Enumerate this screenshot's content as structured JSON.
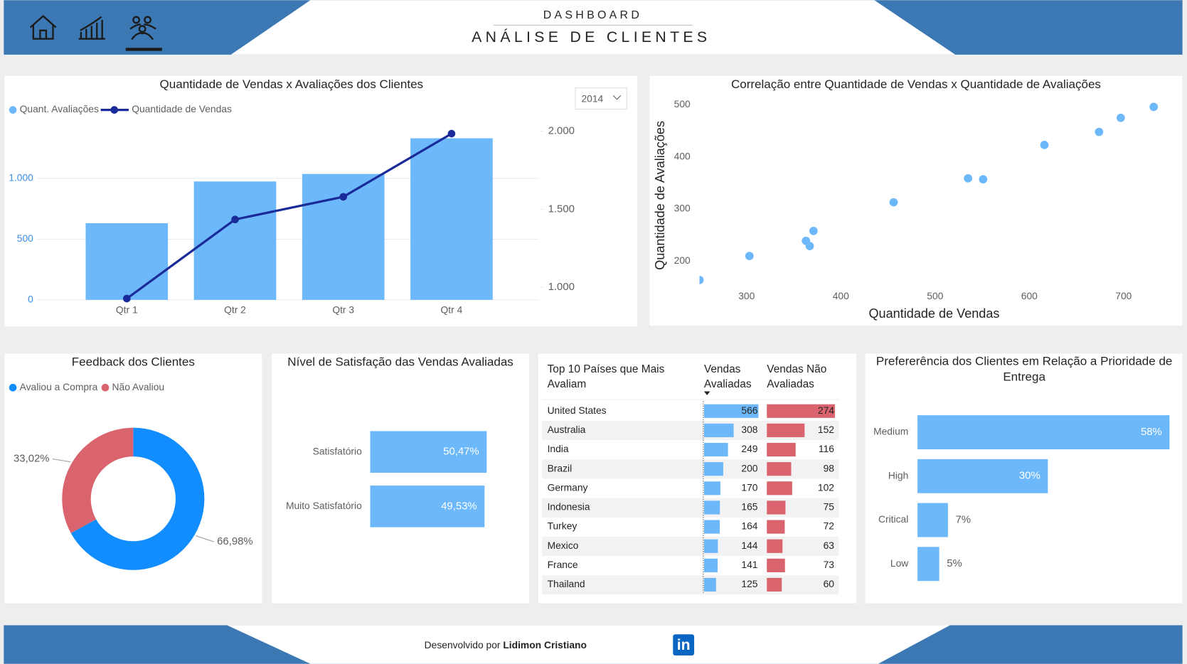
{
  "header": {
    "subtitle": "DASHBOARD",
    "title": "ANÁLISE DE CLIENTES"
  },
  "footer": {
    "prefix": "Desenvolvido por",
    "author": "Lidimon Cristiano",
    "badge": "in"
  },
  "chart_data": [
    {
      "type": "combo",
      "title": "Quantidade de Vendas x Avaliações dos Clientes",
      "filter": "2014",
      "categories": [
        "Qtr 1",
        "Qtr 2",
        "Qtr 3",
        "Qtr 4"
      ],
      "series": [
        {
          "name": "Quant. Avaliações",
          "type": "bar",
          "color": "#6cb8fb",
          "values": [
            631,
            975,
            1037,
            1331
          ]
        },
        {
          "name": "Quantidade de Vendas",
          "type": "line",
          "axis": "y2",
          "color": "#1a2a99",
          "values": [
            928,
            1435,
            1580,
            1985
          ]
        }
      ],
      "ylim": [
        0,
        1440
      ],
      "yticks": [
        0,
        500,
        {
          "value": 1000,
          "label": "1.000"
        }
      ],
      "y2lim": [
        920,
        2040
      ],
      "y2ticks": [
        {
          "value": 1000,
          "label": "1.000"
        },
        {
          "value": 1500,
          "label": "1.500"
        },
        {
          "value": 2000,
          "label": "2.000"
        }
      ],
      "grid": true,
      "legend": "top-left"
    },
    {
      "type": "scatter",
      "title": "Correlação entre Quantidade de Vendas x Quantidade de Avaliações",
      "x_label": "Quantidade de Vendas",
      "y_label": "Quantidade de Avaliações",
      "color": "#6cb8fb",
      "x": [
        250,
        303,
        363,
        367,
        371,
        456,
        535,
        551,
        616,
        674,
        697,
        732
      ],
      "values": [
        164,
        210,
        239,
        229,
        258,
        313,
        359,
        357,
        423,
        448,
        475,
        496
      ],
      "xlim": [
        250,
        740
      ],
      "ylim": [
        152,
        512
      ],
      "xticks": [
        300,
        400,
        500,
        600,
        700
      ],
      "yticks": [
        200,
        300,
        400,
        500
      ]
    },
    {
      "type": "donut",
      "title": "Feedback dos Clientes",
      "categories": [
        "Avaliou a Compra",
        "Não Avaliou"
      ],
      "values": [
        66.98,
        33.02
      ],
      "value_labels": [
        "66,98%",
        "33,02%"
      ],
      "colors": [
        "#118dff",
        "#d9646e"
      ],
      "legend": "top-left"
    },
    {
      "type": "hbar",
      "title": "Nível de Satisfação das Vendas Avaliadas",
      "categories": [
        "Satisfatório",
        "Muito Satisfatório"
      ],
      "values": [
        50.47,
        49.53
      ],
      "value_labels": [
        "50,47%",
        "49,53%"
      ],
      "color": "#6cb8fb"
    },
    {
      "type": "table",
      "title": "Top 10 Países que Mais Avaliam",
      "columns": [
        "Vendas Avaliadas",
        "Vendas Não Avaliadas"
      ],
      "colors": [
        "#6cb8fb",
        "#d9646e"
      ],
      "rows": [
        [
          "United States",
          566,
          274
        ],
        [
          "Australia",
          308,
          152
        ],
        [
          "India",
          249,
          116
        ],
        [
          "Brazil",
          200,
          98
        ],
        [
          "Germany",
          170,
          102
        ],
        [
          "Indonesia",
          165,
          75
        ],
        [
          "Turkey",
          164,
          72
        ],
        [
          "Mexico",
          144,
          63
        ],
        [
          "France",
          141,
          73
        ],
        [
          "Thailand",
          125,
          60
        ]
      ]
    },
    {
      "type": "hbar",
      "title": "Prefererência dos Clientes em Relação a Prioridade de Entrega",
      "categories": [
        "Medium",
        "High",
        "Critical",
        "Low"
      ],
      "values": [
        58,
        30,
        7,
        5
      ],
      "value_labels": [
        "58%",
        "30%",
        "7%",
        "5%"
      ],
      "color": "#6cb8fb"
    }
  ]
}
